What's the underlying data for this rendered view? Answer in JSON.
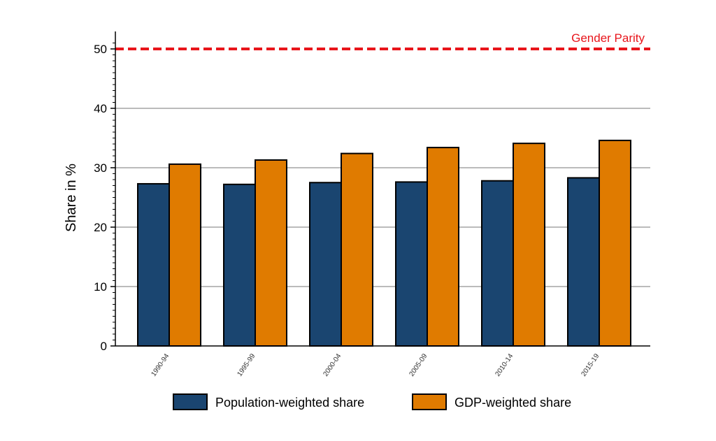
{
  "chart_data": {
    "type": "bar",
    "title": "",
    "xlabel": "",
    "ylabel": "Share in %",
    "ylim": [
      0,
      52.5
    ],
    "yticks": [
      0,
      10,
      20,
      30,
      40,
      50
    ],
    "grid": true,
    "categories": [
      "1990-94",
      "1995-99",
      "2000-04",
      "2005-09",
      "2010-14",
      "2015-19"
    ],
    "series": [
      {
        "name": "Population-weighted share",
        "color": "#1a4570",
        "values": [
          27.3,
          27.2,
          27.5,
          27.6,
          27.8,
          28.3
        ]
      },
      {
        "name": "GDP-weighted share",
        "color": "#e07b00",
        "values": [
          30.6,
          31.3,
          32.4,
          33.4,
          34.1,
          34.6
        ]
      }
    ],
    "reference_line": {
      "value": 50,
      "label": "Gender Parity",
      "color": "#e8151b"
    },
    "legend_placement": "bottom"
  }
}
